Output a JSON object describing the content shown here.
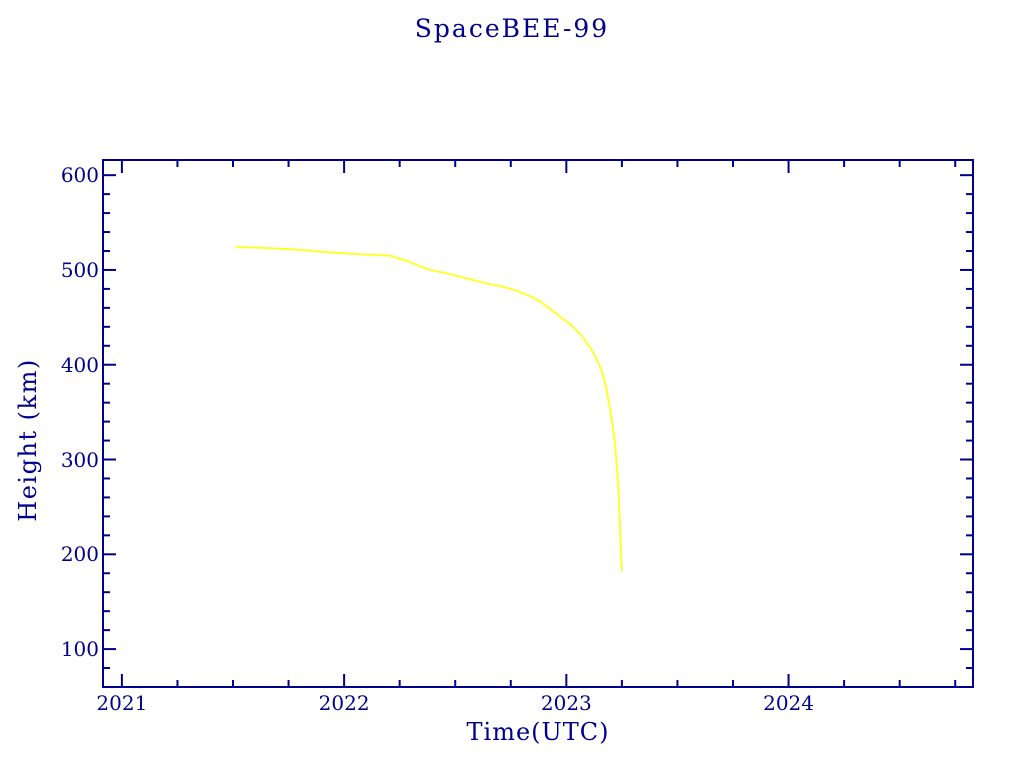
{
  "chart_data": {
    "type": "line",
    "title": "SpaceBEE-99",
    "xlabel": "Time(UTC)",
    "ylabel": "Height (km)",
    "xlim": [
      2020.915,
      2024.83
    ],
    "ylim": [
      60,
      616
    ],
    "x_major_ticks": [
      2021,
      2022,
      2023,
      2024
    ],
    "x_minor_step": 0.25,
    "y_major_ticks": [
      100,
      200,
      300,
      400,
      500,
      600
    ],
    "y_minor_step": 20,
    "grid": false,
    "legend": "none",
    "background_color": "#ffffff",
    "axis_color": "#00008b",
    "text_color": "#00008b",
    "series": [
      {
        "name": "orbital-height-km",
        "color": "#ffff2e",
        "points": [
          [
            2021.515,
            524.5
          ],
          [
            2021.55,
            524
          ],
          [
            2021.62,
            523.5
          ],
          [
            2021.7,
            522.5
          ],
          [
            2021.78,
            521.5
          ],
          [
            2021.86,
            520
          ],
          [
            2021.94,
            518.5
          ],
          [
            2022.0,
            517.5
          ],
          [
            2022.07,
            516.5
          ],
          [
            2022.14,
            516
          ],
          [
            2022.21,
            515
          ],
          [
            2022.26,
            511
          ],
          [
            2022.3,
            508
          ],
          [
            2022.35,
            503
          ],
          [
            2022.39,
            500
          ],
          [
            2022.46,
            496.5
          ],
          [
            2022.52,
            493
          ],
          [
            2022.57,
            490
          ],
          [
            2022.61,
            487.5
          ],
          [
            2022.66,
            485
          ],
          [
            2022.71,
            482.5
          ],
          [
            2022.75,
            480
          ],
          [
            2022.79,
            477
          ],
          [
            2022.83,
            473
          ],
          [
            2022.87,
            468.5
          ],
          [
            2022.9,
            463.5
          ],
          [
            2022.93,
            458.5
          ],
          [
            2022.96,
            453
          ],
          [
            2022.99,
            447.5
          ],
          [
            2023.02,
            442
          ],
          [
            2023.045,
            436.5
          ],
          [
            2023.07,
            430
          ],
          [
            2023.09,
            424
          ],
          [
            2023.11,
            417
          ],
          [
            2023.13,
            409
          ],
          [
            2023.15,
            399
          ],
          [
            2023.165,
            389
          ],
          [
            2023.18,
            375
          ],
          [
            2023.19,
            362
          ],
          [
            2023.2,
            348
          ],
          [
            2023.21,
            333
          ],
          [
            2023.218,
            318
          ],
          [
            2023.225,
            300
          ],
          [
            2023.231,
            282
          ],
          [
            2023.236,
            260
          ],
          [
            2023.24,
            237
          ],
          [
            2023.244,
            213
          ],
          [
            2023.247,
            196
          ],
          [
            2023.25,
            183
          ]
        ]
      }
    ]
  }
}
